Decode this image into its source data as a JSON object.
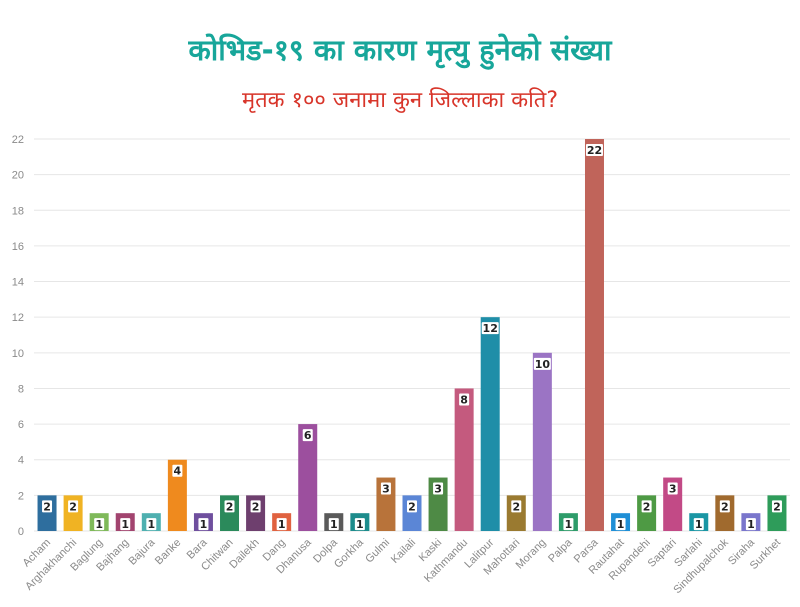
{
  "chart_data": {
    "type": "bar",
    "title": "कोभिड-१९ का कारण मृत्यु हुनेको संख्या",
    "subtitle": "मृतक १०० जनामा कुन जिल्लाका कति?",
    "xlabel": "",
    "ylabel": "",
    "ylim": [
      0,
      22
    ],
    "yticks": [
      0,
      2,
      4,
      6,
      8,
      10,
      12,
      14,
      16,
      18,
      20,
      22
    ],
    "grid": true,
    "legend": "none",
    "categories": [
      "Acham",
      "Arghakhanchi",
      "Baglung",
      "Bajhang",
      "Bajura",
      "Banke",
      "Bara",
      "Chitwan",
      "Dailekh",
      "Dang",
      "Dhanusa",
      "Dolpa",
      "Gorkha",
      "Gulmi",
      "Kailali",
      "Kaski",
      "Kathmandu",
      "Lalitpur",
      "Mahottari",
      "Morang",
      "Palpa",
      "Parsa",
      "Rautahat",
      "Rupandehi",
      "Saptari",
      "Sarlahi",
      "Sindhupalchok",
      "Siraha",
      "Surkhet"
    ],
    "values": [
      2,
      2,
      1,
      1,
      1,
      4,
      1,
      2,
      2,
      1,
      6,
      1,
      1,
      3,
      2,
      3,
      8,
      12,
      2,
      10,
      1,
      22,
      1,
      2,
      3,
      1,
      2,
      1,
      2
    ],
    "colors": [
      "#2e6e9e",
      "#f0b323",
      "#7fb95a",
      "#a2446f",
      "#4fb0b0",
      "#ef8a1e",
      "#6f4f9e",
      "#2b8a5b",
      "#6e3f6e",
      "#e06240",
      "#9c4f9e",
      "#5a5a5a",
      "#1d8c8c",
      "#b8733a",
      "#5b86d6",
      "#4e8a45",
      "#c45a7e",
      "#1f8ea8",
      "#9a7a30",
      "#9b74c4",
      "#2e9c6a",
      "#c0645a",
      "#1f8fd6",
      "#4e9a44",
      "#c24a86",
      "#1a96a4",
      "#a06a2e",
      "#7a76cc",
      "#2e9c5a"
    ],
    "title_color": "#17a69a",
    "subtitle_color": "#d8352a"
  }
}
